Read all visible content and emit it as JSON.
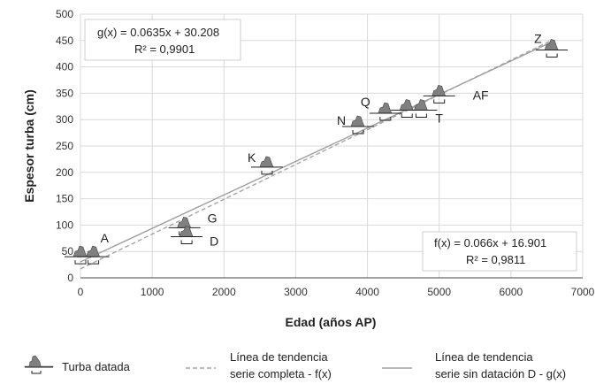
{
  "chart_data": {
    "type": "scatter",
    "xlabel": "Edad (años AP)",
    "ylabel": "Espesor turba (cm)",
    "xlim": [
      0,
      7000
    ],
    "ylim": [
      0,
      500
    ],
    "xticks": [
      "0",
      "1000",
      "2000",
      "3000",
      "4000",
      "5000",
      "6000",
      "7000"
    ],
    "yticks": [
      "0",
      "50",
      "100",
      "150",
      "200",
      "250",
      "300",
      "350",
      "400",
      "450",
      "500"
    ],
    "grid": true,
    "points": [
      {
        "label": "",
        "x": 0,
        "y": 40
      },
      {
        "label": "A",
        "x": 180,
        "y": 40
      },
      {
        "label": "G",
        "x": 1450,
        "y": 95
      },
      {
        "label": "D",
        "x": 1480,
        "y": 78
      },
      {
        "label": "K",
        "x": 2600,
        "y": 210
      },
      {
        "label": "N",
        "x": 3870,
        "y": 287
      },
      {
        "label": "Q",
        "x": 4250,
        "y": 312
      },
      {
        "label": "",
        "x": 4550,
        "y": 318
      },
      {
        "label": "T",
        "x": 4750,
        "y": 318
      },
      {
        "label": "AF",
        "x": 5000,
        "y": 345
      },
      {
        "label": "Z",
        "x": 6570,
        "y": 432
      }
    ],
    "series": [
      {
        "name": "Línea de tendencia serie completa - f(x)",
        "slope": 0.066,
        "intercept": 16.901,
        "x_range": [
          0,
          6550
        ],
        "style": "dashed",
        "color": "#a6a6a6"
      },
      {
        "name": "Línea de tendencia serie sin datación D - g(x)",
        "slope": 0.0635,
        "intercept": 30.208,
        "x_range": [
          0,
          6550
        ],
        "style": "solid",
        "color": "#9e9e9e"
      }
    ],
    "annotations": {
      "g_equation": "g(x) = 0.0635x + 30.208",
      "g_r2": "R² = 0,9901",
      "f_equation": "f(x) = 0.066x + 16.901",
      "f_r2": "R² = 0,9811"
    },
    "legend": {
      "placement": "bottom",
      "items": [
        {
          "marker": "peak-icon",
          "label": "Turba datada"
        },
        {
          "marker": "dashed-line",
          "label_line1": "Línea de tendencia",
          "label_line2": "serie completa - f(x)"
        },
        {
          "marker": "solid-line",
          "label_line1": "Línea de tendencia",
          "label_line2": "serie sin datación D - g(x)"
        }
      ]
    },
    "colors": {
      "marker_fill": "#808080",
      "grid": "#d9d9d9",
      "axis": "#444444"
    }
  }
}
